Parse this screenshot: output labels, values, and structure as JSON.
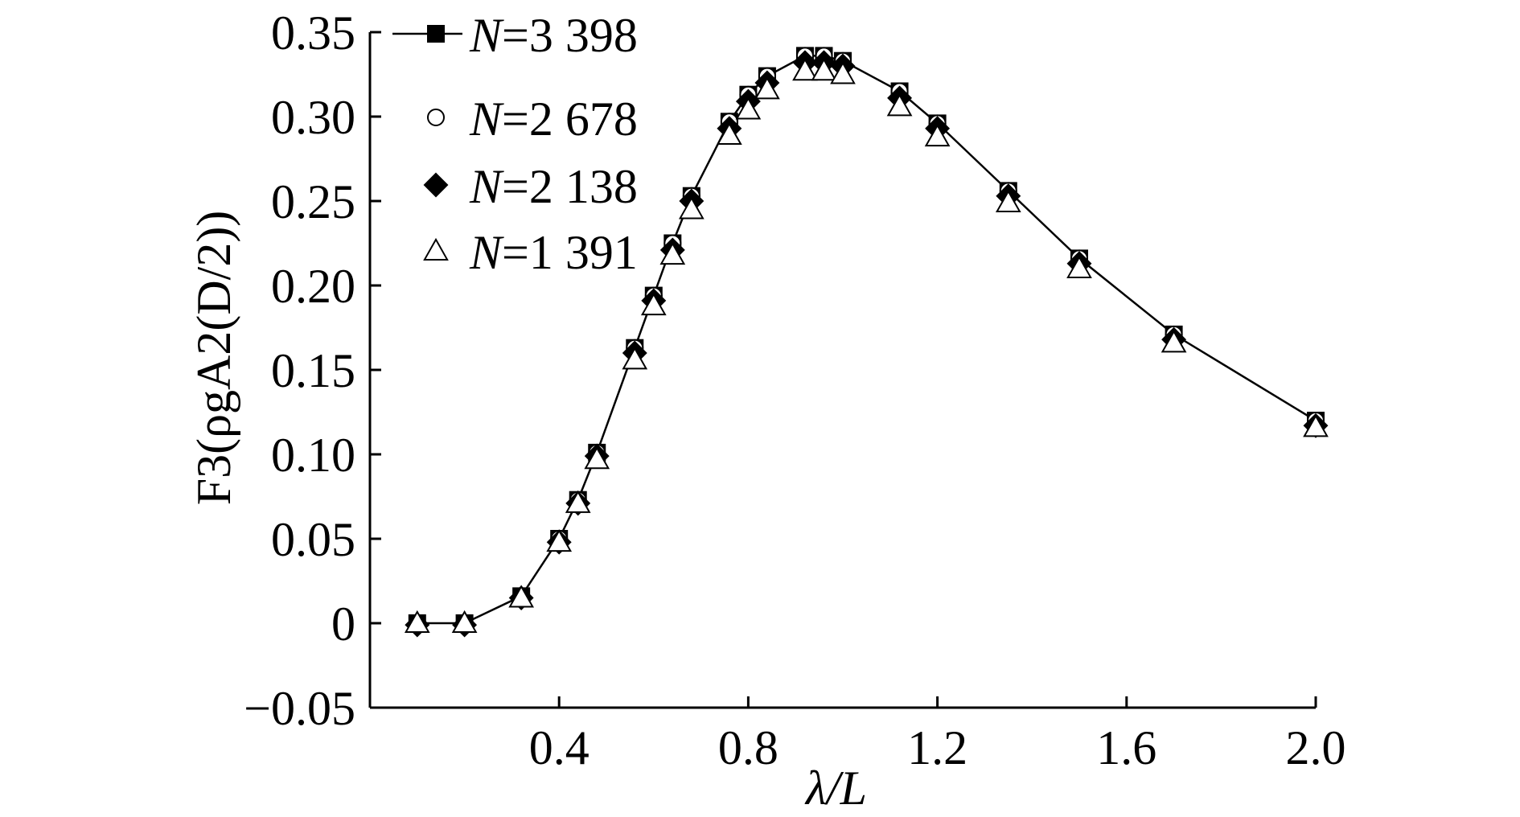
{
  "chart_data": {
    "type": "line",
    "title": "",
    "xlabel": "λ/L",
    "ylabel": "F3(ρgA2(D/2))",
    "xlim": [
      0.0,
      2.0
    ],
    "ylim": [
      -0.05,
      0.35
    ],
    "x_ticks": [
      0.4,
      0.8,
      1.2,
      1.6,
      2.0
    ],
    "x_tick_labels": [
      "0.4",
      "0.8",
      "1.2",
      "1.6",
      "2.0"
    ],
    "y_ticks": [
      -0.05,
      0.0,
      0.05,
      0.1,
      0.15,
      0.2,
      0.25,
      0.3,
      0.35
    ],
    "y_tick_labels": [
      "−0.05",
      "0",
      "0.05",
      "0.10",
      "0.15",
      "0.20",
      "0.25",
      "0.30",
      "0.35"
    ],
    "grid": false,
    "legend_position": "top-left",
    "x": [
      0.1,
      0.2,
      0.32,
      0.4,
      0.44,
      0.48,
      0.56,
      0.6,
      0.64,
      0.68,
      0.76,
      0.8,
      0.84,
      0.92,
      0.96,
      1.0,
      1.12,
      1.2,
      1.35,
      1.5,
      1.7,
      2.0
    ],
    "series": [
      {
        "name": "N=3 398",
        "values": [
          0.0,
          0.0,
          0.016,
          0.05,
          0.073,
          0.101,
          0.163,
          0.194,
          0.225,
          0.253,
          0.297,
          0.313,
          0.324,
          0.336,
          0.336,
          0.333,
          0.315,
          0.296,
          0.256,
          0.216,
          0.171,
          0.12
        ],
        "marker": "square-filled",
        "color": "#000000",
        "line": true
      },
      {
        "name": "N=2 678",
        "values": [
          0.0,
          0.0,
          0.016,
          0.05,
          0.073,
          0.101,
          0.163,
          0.194,
          0.225,
          0.253,
          0.297,
          0.313,
          0.324,
          0.336,
          0.336,
          0.333,
          0.315,
          0.296,
          0.256,
          0.216,
          0.171,
          0.12
        ],
        "marker": "circle-open",
        "color": "#000000",
        "line": false
      },
      {
        "name": "N=2 138",
        "values": [
          -0.001,
          -0.001,
          0.015,
          0.048,
          0.071,
          0.099,
          0.16,
          0.191,
          0.221,
          0.25,
          0.293,
          0.309,
          0.32,
          0.332,
          0.332,
          0.33,
          0.311,
          0.293,
          0.253,
          0.213,
          0.168,
          0.117
        ],
        "marker": "diamond-filled",
        "color": "#000000",
        "line": false
      },
      {
        "name": "N=1 391",
        "values": [
          0.0,
          0.0,
          0.015,
          0.048,
          0.071,
          0.097,
          0.156,
          0.188,
          0.218,
          0.245,
          0.289,
          0.304,
          0.316,
          0.327,
          0.327,
          0.325,
          0.306,
          0.288,
          0.249,
          0.21,
          0.166,
          0.116
        ],
        "marker": "triangle-open",
        "color": "#000000",
        "line": false
      }
    ]
  }
}
